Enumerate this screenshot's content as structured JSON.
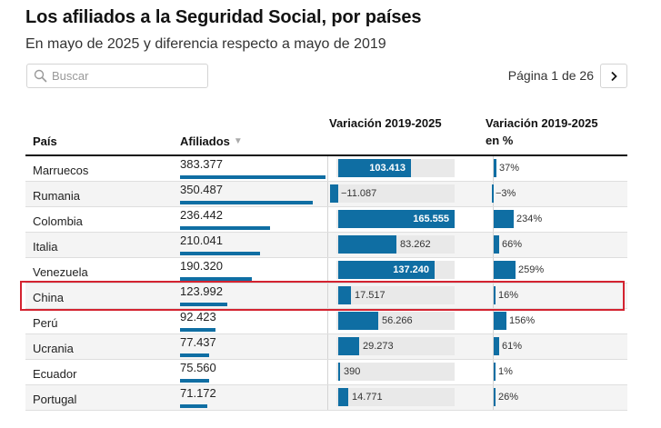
{
  "header": {
    "title": "Los afiliados a la Seguridad Social, por países",
    "subtitle": "En mayo de 2025 y diferencia respecto a mayo de 2019"
  },
  "search": {
    "placeholder": "Buscar",
    "value": ""
  },
  "pager": {
    "label": "Página 1 de 26",
    "next_icon": "chevron-right-icon"
  },
  "table": {
    "columns": {
      "country": "País",
      "affiliates": "Afiliados",
      "variation": "Variación 2019-2025",
      "variation_pct": "Variación 2019-2025 en %"
    },
    "sort_icon": "▼",
    "rows": [
      {
        "country": "Marruecos",
        "affiliates": "383.377",
        "affiliates_value": 383377,
        "variation": "103.413",
        "variation_value": 103413,
        "variation_pct": "37%",
        "variation_pct_value": 37
      },
      {
        "country": "Rumania",
        "affiliates": "350.487",
        "affiliates_value": 350487,
        "variation": "−11.087",
        "variation_value": -11087,
        "variation_pct": "−3%",
        "variation_pct_value": -3
      },
      {
        "country": "Colombia",
        "affiliates": "236.442",
        "affiliates_value": 236442,
        "variation": "165.555",
        "variation_value": 165555,
        "variation_pct": "234%",
        "variation_pct_value": 234
      },
      {
        "country": "Italia",
        "affiliates": "210.041",
        "affiliates_value": 210041,
        "variation": "83.262",
        "variation_value": 83262,
        "variation_pct": "66%",
        "variation_pct_value": 66
      },
      {
        "country": "Venezuela",
        "affiliates": "190.320",
        "affiliates_value": 190320,
        "variation": "137.240",
        "variation_value": 137240,
        "variation_pct": "259%",
        "variation_pct_value": 259
      },
      {
        "country": "China",
        "affiliates": "123.992",
        "affiliates_value": 123992,
        "variation": "17.517",
        "variation_value": 17517,
        "variation_pct": "16%",
        "variation_pct_value": 16
      },
      {
        "country": "Perú",
        "affiliates": "92.423",
        "affiliates_value": 92423,
        "variation": "56.266",
        "variation_value": 56266,
        "variation_pct": "156%",
        "variation_pct_value": 156
      },
      {
        "country": "Ucrania",
        "affiliates": "77.437",
        "affiliates_value": 77437,
        "variation": "29.273",
        "variation_value": 29273,
        "variation_pct": "61%",
        "variation_pct_value": 61
      },
      {
        "country": "Ecuador",
        "affiliates": "75.560",
        "affiliates_value": 75560,
        "variation": "390",
        "variation_value": 390,
        "variation_pct": "1%",
        "variation_pct_value": 1
      },
      {
        "country": "Portugal",
        "affiliates": "71.172",
        "affiliates_value": 71172,
        "variation": "14.771",
        "variation_value": 14771,
        "variation_pct": "26%",
        "variation_pct_value": 26
      }
    ]
  },
  "highlighted_row": "China",
  "colors": {
    "bar": "#0f6ea3",
    "highlight": "#d42330",
    "bar_track": "#e9e9e9",
    "row_alt": "#f4f4f4"
  }
}
